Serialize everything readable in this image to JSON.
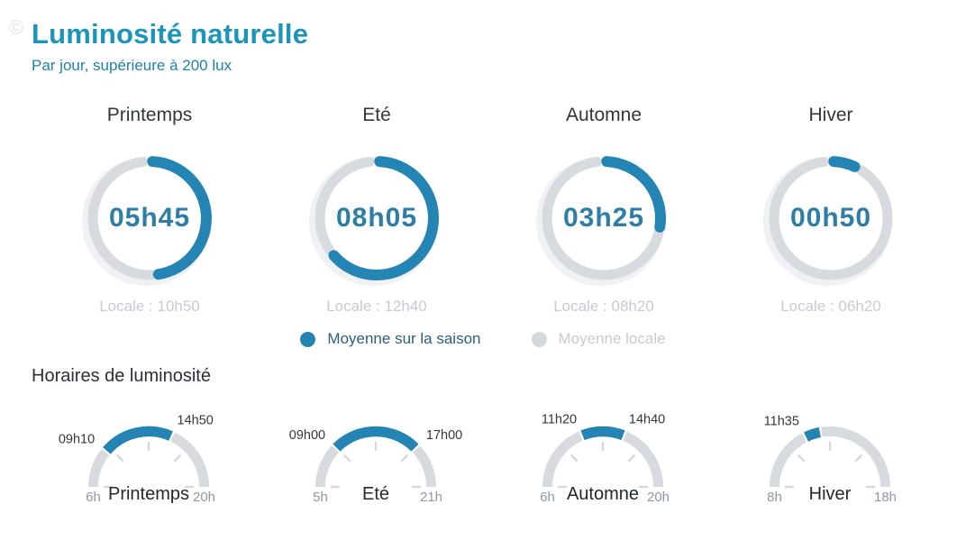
{
  "watermark": {
    "symbol": "©"
  },
  "header": {
    "title": "Luminosité naturelle",
    "subtitle": "Par jour, supérieure à 200 lux"
  },
  "legend": {
    "items": [
      {
        "label": "Moyenne sur la saison",
        "color": "#2484b4"
      },
      {
        "label": "Moyenne locale",
        "color": "#d3d8dc"
      }
    ]
  },
  "section": {
    "title": "Horaires de luminosité"
  },
  "colors": {
    "accent_blue": "#2484b4",
    "title_teal": "#1b95bb",
    "subtitle_blue": "#2181ad",
    "value_text_blue": "#2e7da7",
    "ring_gray": "#d7dbdf",
    "ring_faint": "#eff1f4",
    "muted_gray_text": "#c6cbd1",
    "dark_text": "#33383c",
    "axis_label_gray": "#8d98a3",
    "tick_gray": "#d3d8dc",
    "bottom_season_text": "#23282d"
  },
  "chart_data": [
    {
      "type": "donut-gauges",
      "title": "Luminosité naturelle",
      "subtitle": "Par jour, supérieure à 200 lux",
      "max_hours": 12,
      "legend": [
        "Moyenne sur la saison",
        "Moyenne locale"
      ],
      "items": [
        {
          "season": "Printemps",
          "value_label": "05h45",
          "value_hours": 5.75,
          "local_label": "Locale : 10h50",
          "local_hours": 10.83,
          "arc_degrees": 171
        },
        {
          "season": "Eté",
          "value_label": "08h05",
          "value_hours": 8.08,
          "local_label": "Locale : 12h40",
          "local_hours": 12.67,
          "arc_degrees": 229
        },
        {
          "season": "Automne",
          "value_label": "03h25",
          "value_hours": 3.42,
          "local_label": "Locale : 08h20",
          "local_hours": 8.33,
          "arc_degrees": 99
        },
        {
          "season": "Hiver",
          "value_label": "00h50",
          "value_hours": 0.83,
          "local_label": "Locale : 06h20",
          "local_hours": 6.33,
          "arc_degrees": 25
        }
      ]
    },
    {
      "type": "semicircle-gauges",
      "title": "Horaires de luminosité",
      "items": [
        {
          "season": "Printemps",
          "axis_min": 6,
          "axis_max": 20,
          "axis_min_label": "6h",
          "axis_max_label": "20h",
          "start_hours": 9.17,
          "end_hours": 14.83,
          "start_label": "09h10",
          "end_label": "14h50"
        },
        {
          "season": "Eté",
          "axis_min": 5,
          "axis_max": 21,
          "axis_min_label": "5h",
          "axis_max_label": "21h",
          "start_hours": 9.0,
          "end_hours": 17.0,
          "start_label": "09h00",
          "end_label": "17h00"
        },
        {
          "season": "Automne",
          "axis_min": 6,
          "axis_max": 20,
          "axis_min_label": "6h",
          "axis_max_label": "20h",
          "start_hours": 11.33,
          "end_hours": 14.67,
          "start_label": "11h20",
          "end_label": "14h40"
        },
        {
          "season": "Hiver",
          "axis_min": 8,
          "axis_max": 18,
          "axis_min_label": "8h",
          "axis_max_label": "18h",
          "start_hours": 11.58,
          "end_hours": 12.42,
          "start_label": "11h35",
          "end_label": ""
        }
      ]
    }
  ]
}
